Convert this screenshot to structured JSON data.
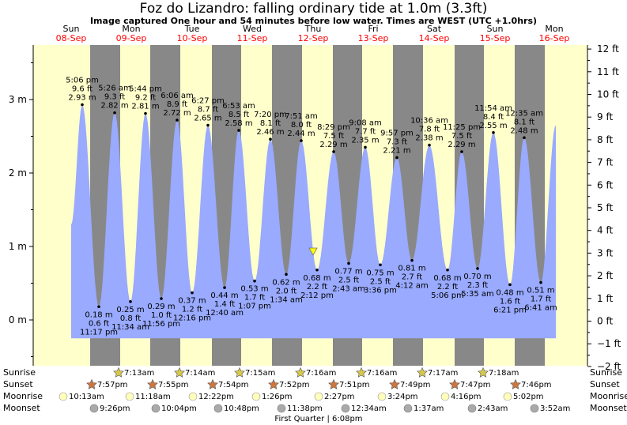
{
  "header": {
    "title": "Foz do Lizandro: falling  ordinary tide at 1.0m (3.3ft)",
    "subtitle": "Image captured One hour and 54 minutes before low water. Times are WEST (UTC +1.0hrs)"
  },
  "colors": {
    "day_background": "#ffffcc",
    "night_band": "#888888",
    "tide_fill": "#99aaff",
    "date_label": "#ff0000",
    "sun_icon": "#d7c94a",
    "sunset_icon": "#d0763c",
    "moonrise_icon": "#ffffbb",
    "moonset_icon": "#aaaaaa",
    "now_marker": "#ffff00"
  },
  "days": [
    {
      "dow": "Sun",
      "date": "08-Sep"
    },
    {
      "dow": "Mon",
      "date": "09-Sep"
    },
    {
      "dow": "Tue",
      "date": "10-Sep"
    },
    {
      "dow": "Wed",
      "date": "11-Sep"
    },
    {
      "dow": "Thu",
      "date": "12-Sep"
    },
    {
      "dow": "Fri",
      "date": "13-Sep"
    },
    {
      "dow": "Sat",
      "date": "14-Sep"
    },
    {
      "dow": "Sun",
      "date": "15-Sep"
    },
    {
      "dow": "Mon",
      "date": "16-Sep"
    }
  ],
  "chart_data": {
    "type": "area",
    "ylabel_left_unit": "m",
    "ylabel_right_unit": "ft",
    "ylim_m": [
      -0.7,
      3.75
    ],
    "left_ticks": [
      "0 m",
      "1 m",
      "2 m",
      "3 m"
    ],
    "right_ticks": [
      "−2 ft",
      "−1 ft",
      "0 ft",
      "1 ft",
      "2 ft",
      "3 ft",
      "4 ft",
      "5 ft",
      "6 ft",
      "7 ft",
      "8 ft",
      "9 ft",
      "10 ft",
      "11 ft",
      "12 ft"
    ],
    "current_level_m": 1.0,
    "high_tides": [
      {
        "time": "5:06 pm",
        "ft": "9.6 ft",
        "m": "2.93 m",
        "level": 2.93
      },
      {
        "time": "5:26 am",
        "ft": "9.3 ft",
        "m": "2.82 m",
        "level": 2.82
      },
      {
        "time": "5:44 pm",
        "ft": "9.2 ft",
        "m": "2.81 m",
        "level": 2.81
      },
      {
        "time": "6:06 am",
        "ft": "8.9 ft",
        "m": "2.72 m",
        "level": 2.72
      },
      {
        "time": "6:27 pm",
        "ft": "8.7 ft",
        "m": "2.65 m",
        "level": 2.65
      },
      {
        "time": "6:53 am",
        "ft": "8.5 ft",
        "m": "2.58 m",
        "level": 2.58
      },
      {
        "time": "7:20 pm",
        "ft": "8.1 ft",
        "m": "2.46 m",
        "level": 2.46
      },
      {
        "time": "7:51 am",
        "ft": "8.0 ft",
        "m": "2.44 m",
        "level": 2.44
      },
      {
        "time": "8:29 pm",
        "ft": "7.5 ft",
        "m": "2.29 m",
        "level": 2.29
      },
      {
        "time": "9:08 am",
        "ft": "7.7 ft",
        "m": "2.35 m",
        "level": 2.35
      },
      {
        "time": "9:57 pm",
        "ft": "7.3 ft",
        "m": "2.21 m",
        "level": 2.21
      },
      {
        "time": "10:36 am",
        "ft": "7.8 ft",
        "m": "2.38 m",
        "level": 2.38
      },
      {
        "time": "11:25 pm",
        "ft": "7.5 ft",
        "m": "2.29 m",
        "level": 2.29
      },
      {
        "time": "11:54 am",
        "ft": "8.4 ft",
        "m": "2.55 m",
        "level": 2.55
      },
      {
        "time": "12:35 am",
        "ft": "8.1 ft",
        "m": "2.48 m",
        "level": 2.48
      }
    ],
    "low_tides": [
      {
        "time": "11:17 pm",
        "ft": "0.6 ft",
        "m": "0.18 m",
        "level": 0.18
      },
      {
        "time": "11:34 am",
        "ft": "0.8 ft",
        "m": "0.25 m",
        "level": 0.25
      },
      {
        "time": "11:56 pm",
        "ft": "1.0 ft",
        "m": "0.29 m",
        "level": 0.29
      },
      {
        "time": "12:16 pm",
        "ft": "1.2 ft",
        "m": "0.37 m",
        "level": 0.37
      },
      {
        "time": "12:40 am",
        "ft": "1.4 ft",
        "m": "0.44 m",
        "level": 0.44
      },
      {
        "time": "1:07 pm",
        "ft": "1.7 ft",
        "m": "0.53 m",
        "level": 0.53
      },
      {
        "time": "1:34 am",
        "ft": "2.0 ft",
        "m": "0.62 m",
        "level": 0.62
      },
      {
        "time": "2:12 pm",
        "ft": "2.2 ft",
        "m": "0.68 m",
        "level": 0.68
      },
      {
        "time": "2:43 am",
        "ft": "2.5 ft",
        "m": "0.77 m",
        "level": 0.77
      },
      {
        "time": "3:36 pm",
        "ft": "2.5 ft",
        "m": "0.75 m",
        "level": 0.75
      },
      {
        "time": "4:12 am",
        "ft": "2.7 ft",
        "m": "0.81 m",
        "level": 0.81
      },
      {
        "time": "5:06 pm",
        "ft": "2.2 ft",
        "m": "0.68 m",
        "level": 0.68
      },
      {
        "time": "5:35 am",
        "ft": "2.3 ft",
        "m": "0.70 m",
        "level": 0.7
      },
      {
        "time": "6:21 pm",
        "ft": "1.6 ft",
        "m": "0.48 m",
        "level": 0.48
      },
      {
        "time": "6:41 am",
        "ft": "1.7 ft",
        "m": "0.51 m",
        "level": 0.51
      }
    ]
  },
  "almanac": {
    "row_labels": [
      "Sunrise",
      "Sunset",
      "Moonrise",
      "Moonset"
    ],
    "sunrise": [
      "7:13am",
      "7:14am",
      "7:15am",
      "7:16am",
      "7:16am",
      "7:17am",
      "7:18am"
    ],
    "sunset": [
      "7:57pm",
      "7:55pm",
      "7:54pm",
      "7:52pm",
      "7:51pm",
      "7:49pm",
      "7:47pm",
      "7:46pm"
    ],
    "moonrise": [
      "10:13am",
      "11:18am",
      "12:22pm",
      "1:26pm",
      "2:27pm",
      "3:24pm",
      "4:16pm",
      "5:02pm"
    ],
    "moonset": [
      "9:26pm",
      "10:04pm",
      "10:48pm",
      "11:38pm",
      "12:34am",
      "1:37am",
      "2:43am",
      "3:52am"
    ],
    "moon_phase": "First Quarter | 6:08pm"
  }
}
